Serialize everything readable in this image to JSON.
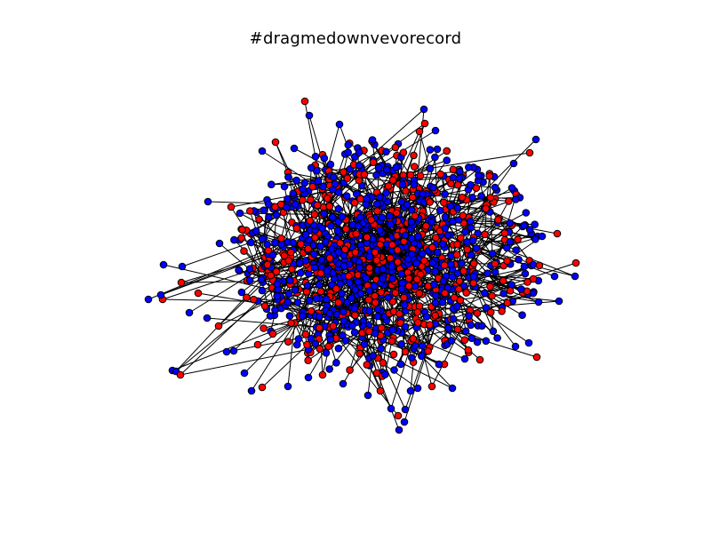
{
  "title": "#dragmedownvevorecord",
  "colors": {
    "background": "#ffffff",
    "group_a": "#0000ff",
    "group_b": "#ff0000",
    "edge": "#000000",
    "node_outline": "#000000"
  }
}
